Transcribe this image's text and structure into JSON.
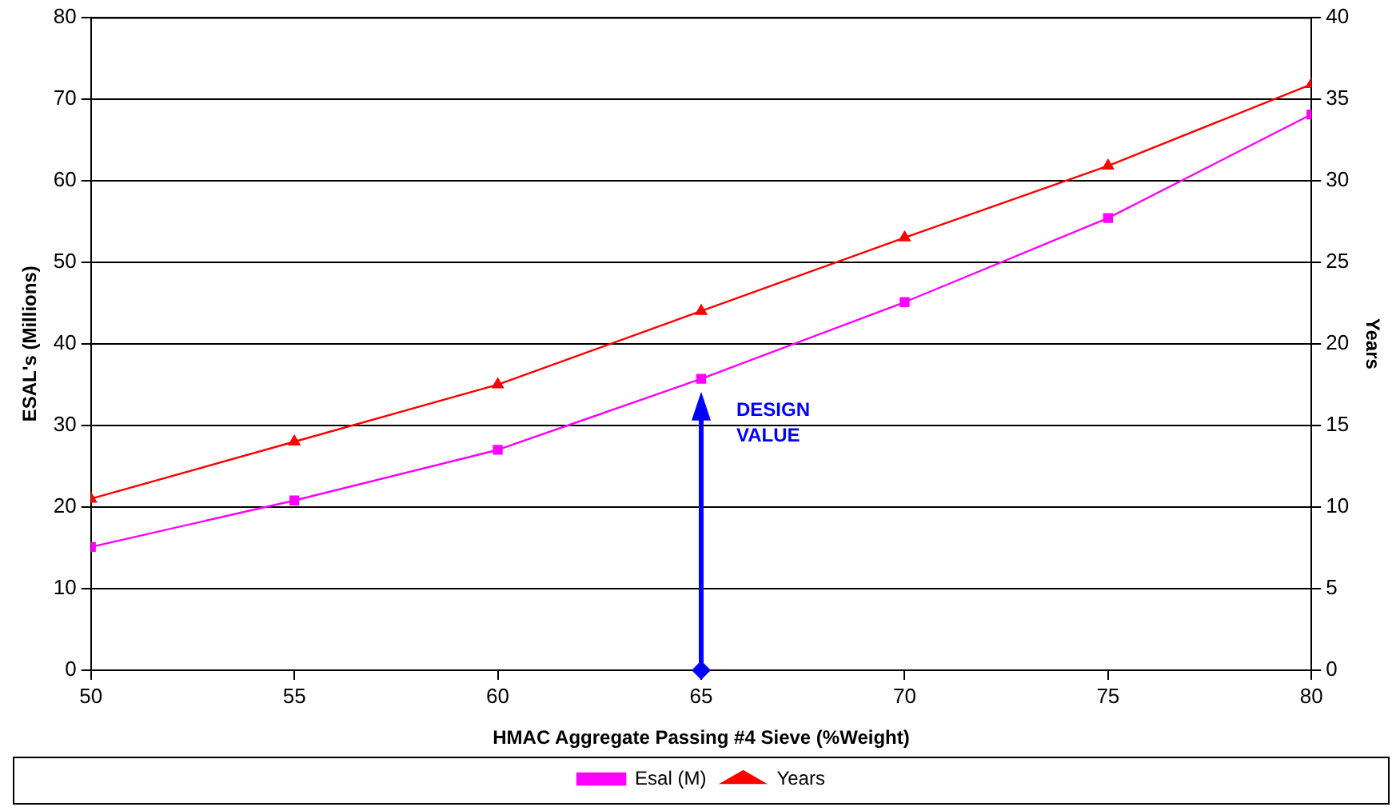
{
  "chart_data": {
    "type": "line",
    "xlabel": "HMAC Aggregate Passing #4 Sieve (%Weight)",
    "ylabel": "ESAL's (Millions)",
    "y2label": "Years",
    "x": [
      50,
      55,
      60,
      65,
      70,
      75,
      80
    ],
    "series": [
      {
        "name": "Esal (M)",
        "color": "#ff00ff",
        "marker": "square",
        "values": [
          15.1,
          20.8,
          27.0,
          35.7,
          45.1,
          55.4,
          68.1
        ]
      },
      {
        "name": "Years",
        "color": "#ff0000",
        "marker": "triangle",
        "axis": "y2",
        "values": [
          10.5,
          14.0,
          17.5,
          22.0,
          26.5,
          30.9,
          35.9
        ]
      }
    ],
    "xlim": [
      50,
      80
    ],
    "xticks": [
      50,
      55,
      60,
      65,
      70,
      75,
      80
    ],
    "ylim": [
      0,
      80
    ],
    "yticks": [
      0,
      10,
      20,
      30,
      40,
      50,
      60,
      70,
      80
    ],
    "y2lim": [
      0,
      40
    ],
    "y2ticks": [
      0,
      5,
      10,
      15,
      20,
      25,
      30,
      35,
      40
    ],
    "annotations": [
      {
        "text": "DESIGN VALUE",
        "x": 65,
        "y": 35.7
      }
    ],
    "grid": "y",
    "legend": "bottom",
    "line_style": "solid"
  }
}
